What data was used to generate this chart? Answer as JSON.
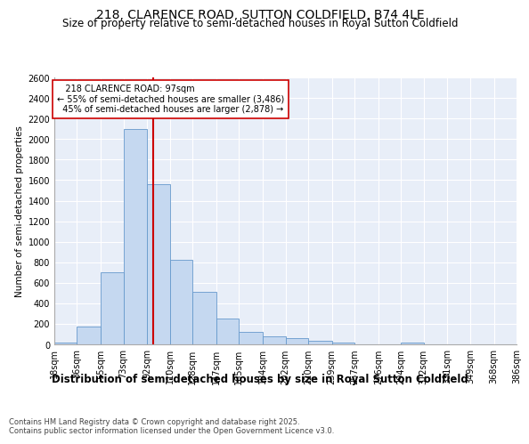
{
  "title": "218, CLARENCE ROAD, SUTTON COLDFIELD, B74 4LE",
  "subtitle": "Size of property relative to semi-detached houses in Royal Sutton Coldfield",
  "xlabel": "Distribution of semi-detached houses by size in Royal Sutton Coldfield",
  "ylabel": "Number of semi-detached properties",
  "bar_color": "#c5d8f0",
  "bar_edge_color": "#6699cc",
  "background_color": "#e8eef8",
  "grid_color": "#ffffff",
  "vline_color": "#cc0000",
  "vline_x": 97,
  "property_label": "218 CLARENCE ROAD: 97sqm",
  "pct_smaller": 55,
  "pct_larger": 45,
  "count_smaller": 3486,
  "count_larger": 2878,
  "bins": [
    18,
    36,
    55,
    73,
    92,
    110,
    128,
    147,
    165,
    184,
    202,
    220,
    239,
    257,
    276,
    294,
    312,
    331,
    349,
    368,
    386
  ],
  "counts": [
    20,
    175,
    700,
    2100,
    1560,
    825,
    510,
    255,
    125,
    80,
    60,
    35,
    20,
    0,
    0,
    15,
    0,
    0,
    0,
    0,
    15
  ],
  "ylim": [
    0,
    2600
  ],
  "yticks": [
    0,
    200,
    400,
    600,
    800,
    1000,
    1200,
    1400,
    1600,
    1800,
    2000,
    2200,
    2400,
    2600
  ],
  "footer": "Contains HM Land Registry data © Crown copyright and database right 2025.\nContains public sector information licensed under the Open Government Licence v3.0.",
  "title_fontsize": 10,
  "subtitle_fontsize": 8.5,
  "xlabel_fontsize": 8.5,
  "ylabel_fontsize": 7.5,
  "tick_fontsize": 7,
  "footer_fontsize": 6,
  "annotation_fontsize": 7
}
